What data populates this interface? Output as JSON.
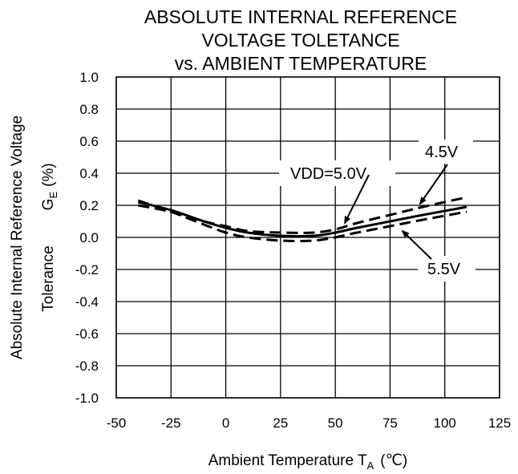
{
  "chart_data": {
    "type": "line",
    "title": [
      "ABSOLUTE INTERNAL REFERENCE",
      "VOLTAGE TOLETANCE",
      "vs. AMBIENT TEMPERATURE"
    ],
    "xlabel": "Ambient Temperature  TA  (℃)",
    "xlabel_parts": {
      "main": "Ambient Temperature  T",
      "sub": "A",
      "unit": "(℃)"
    },
    "ylabel_lines": [
      "Absolute Internal Reference  Voltage",
      "Tolerance  GE (%)"
    ],
    "ylabel_parts": {
      "line1": "Absolute Internal Reference  Voltage",
      "line2_a": "Tolerance",
      "line2_b": "G",
      "line2_sub": "E",
      "line2_c": "(%)"
    },
    "xlim": [
      -50,
      125
    ],
    "ylim": [
      -1.0,
      1.0
    ],
    "x_ticks": [
      "-50",
      "-25",
      "0",
      "25",
      "50",
      "75",
      "100",
      "125"
    ],
    "x_tick_values": [
      -50,
      -25,
      0,
      25,
      50,
      75,
      100,
      125
    ],
    "y_ticks": [
      "1.0",
      "0.8",
      "0.6",
      "0.4",
      "0.2",
      "0.0",
      "-0.2",
      "-0.4",
      "-0.6",
      "-0.8",
      "-1.0"
    ],
    "y_tick_values": [
      1.0,
      0.8,
      0.6,
      0.4,
      0.2,
      0.0,
      -0.2,
      -0.4,
      -0.6,
      -0.8,
      -1.0
    ],
    "grid": true,
    "series": [
      {
        "name": "VDD=5.0V",
        "style": "solid",
        "x": [
          -40,
          -25,
          -10,
          0,
          10,
          25,
          40,
          50,
          60,
          75,
          90,
          110
        ],
        "values": [
          0.22,
          0.17,
          0.1,
          0.06,
          0.03,
          0.01,
          0.01,
          0.03,
          0.06,
          0.1,
          0.14,
          0.19
        ]
      },
      {
        "name": "4.5V",
        "style": "dashed",
        "x": [
          -40,
          -25,
          -10,
          0,
          10,
          25,
          40,
          50,
          60,
          75,
          90,
          110
        ],
        "values": [
          0.2,
          0.16,
          0.1,
          0.07,
          0.04,
          0.03,
          0.03,
          0.05,
          0.09,
          0.14,
          0.19,
          0.25
        ]
      },
      {
        "name": "5.5V",
        "style": "dashed",
        "x": [
          -40,
          -25,
          -10,
          0,
          10,
          25,
          40,
          50,
          60,
          75,
          90,
          110
        ],
        "values": [
          0.23,
          0.16,
          0.08,
          0.03,
          0.0,
          -0.02,
          -0.02,
          0.0,
          0.03,
          0.07,
          0.11,
          0.16
        ]
      }
    ],
    "colors": {
      "line": "#000000",
      "grid": "#000000",
      "background": "#ffffff"
    }
  }
}
